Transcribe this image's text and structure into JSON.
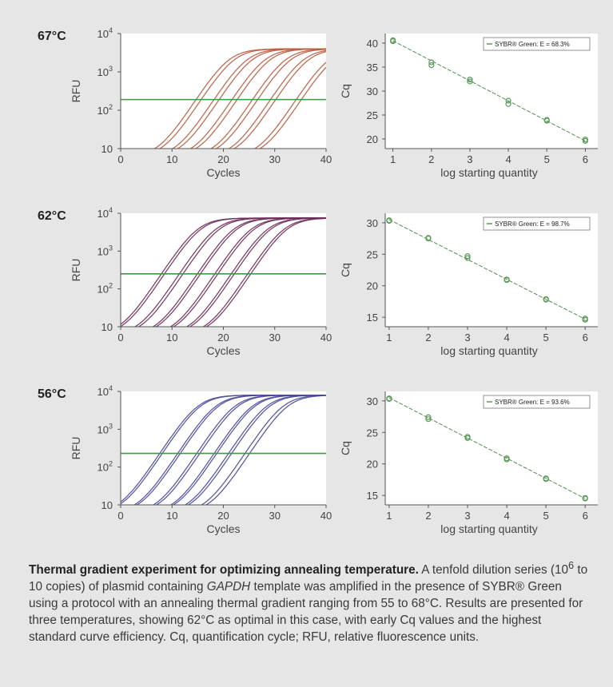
{
  "chart_data": [
    {
      "type": "line",
      "temperature": "67°C",
      "xlabel": "Cycles",
      "ylabel": "RFU",
      "xlim": [
        0,
        40
      ],
      "ylim": [
        10,
        10000
      ],
      "yscale": "log",
      "xticks": [
        "0",
        "10",
        "20",
        "30",
        "40"
      ],
      "yticks": [
        {
          "base": "10",
          "exp": ""
        },
        {
          "base": "10",
          "exp": "2"
        },
        {
          "base": "10",
          "exp": "3"
        },
        {
          "base": "10",
          "exp": "4"
        }
      ],
      "threshold": 190,
      "threshold_color": "#3f9a3f",
      "curve_color": "#b85c40",
      "curve_midpoints": [
        21,
        22,
        24.5,
        25.5,
        28,
        29,
        32,
        33,
        35.5,
        36.5,
        40.5,
        41.5
      ],
      "plateau": 4000
    },
    {
      "type": "scatter",
      "xlabel": "log starting quantity",
      "ylabel": "Cq",
      "xlim": [
        0.8,
        6.2
      ],
      "ylim": [
        18,
        42
      ],
      "xticks": [
        1,
        2,
        3,
        4,
        5,
        6
      ],
      "yticks": [
        20,
        25,
        30,
        35,
        40
      ],
      "legend": "SYBR® Green: E = 68.3%",
      "legend_position": "top-right",
      "point_color": "#5a9a5a",
      "x": [
        1,
        1,
        2,
        2,
        3,
        3,
        4,
        4,
        5,
        5,
        6,
        6
      ],
      "y": [
        40.6,
        40.4,
        36.0,
        35.4,
        32.4,
        32.0,
        28.0,
        27.3,
        24.0,
        23.8,
        19.9,
        19.6
      ],
      "fit": [
        [
          1,
          40.5
        ],
        [
          6,
          19.6
        ]
      ]
    },
    {
      "type": "line",
      "temperature": "62°C",
      "xlabel": "Cycles",
      "ylabel": "RFU",
      "xlim": [
        0,
        40
      ],
      "ylim": [
        10,
        10000
      ],
      "yscale": "log",
      "xticks": [
        "0",
        "10",
        "20",
        "30",
        "40"
      ],
      "yticks": [
        {
          "base": "10",
          "exp": ""
        },
        {
          "base": "10",
          "exp": "2"
        },
        {
          "base": "10",
          "exp": "3"
        },
        {
          "base": "10",
          "exp": "4"
        }
      ],
      "threshold": 250,
      "threshold_color": "#3f9a3f",
      "curve_color": "#6e2f5a",
      "curve_midpoints": [
        15,
        15.6,
        18.5,
        19.2,
        22,
        22.6,
        25.4,
        26,
        28.6,
        29.2,
        31.8,
        32.4
      ],
      "plateau": 7500
    },
    {
      "type": "scatter",
      "xlabel": "log starting quantity",
      "ylabel": "Cq",
      "xlim": [
        0.9,
        6.2
      ],
      "ylim": [
        13.5,
        31.5
      ],
      "xticks": [
        1,
        2,
        3,
        4,
        5,
        6
      ],
      "yticks": [
        15,
        20,
        25,
        30
      ],
      "legend": "SYBR® Green: E = 98.7%",
      "legend_position": "top-right",
      "point_color": "#5a9a5a",
      "x": [
        1,
        1,
        2,
        2,
        3,
        3,
        4,
        4,
        5,
        5,
        6,
        6
      ],
      "y": [
        30.4,
        30.3,
        27.6,
        27.5,
        24.7,
        24.4,
        21.0,
        20.9,
        17.9,
        17.8,
        14.8,
        14.6
      ],
      "fit": [
        [
          1,
          30.5
        ],
        [
          6,
          14.7
        ]
      ]
    },
    {
      "type": "line",
      "temperature": "56°C",
      "xlabel": "Cycles",
      "ylabel": "RFU",
      "xlim": [
        0,
        40
      ],
      "ylim": [
        10,
        10000
      ],
      "yscale": "log",
      "xticks": [
        "0",
        "10",
        "20",
        "30",
        "40"
      ],
      "yticks": [
        {
          "base": "10",
          "exp": ""
        },
        {
          "base": "10",
          "exp": "2"
        },
        {
          "base": "10",
          "exp": "3"
        },
        {
          "base": "10",
          "exp": "4"
        }
      ],
      "threshold": 230,
      "threshold_color": "#3f9a3f",
      "curve_color": "#4a4a98",
      "curve_midpoints": [
        15,
        15.5,
        18.5,
        19,
        22.2,
        22.8,
        25.6,
        26.1,
        28.4,
        29,
        31.6,
        32.5
      ],
      "plateau": 8000
    },
    {
      "type": "scatter",
      "xlabel": "log starting quantity",
      "ylabel": "Cq",
      "xlim": [
        0.9,
        6.2
      ],
      "ylim": [
        13.5,
        31.5
      ],
      "xticks": [
        1,
        2,
        3,
        4,
        5,
        6
      ],
      "yticks": [
        15,
        20,
        25,
        30
      ],
      "legend": "SYBR® Green: E = 93.6%",
      "legend_position": "top-right",
      "point_color": "#5a9a5a",
      "x": [
        1,
        1,
        2,
        2,
        3,
        3,
        4,
        4,
        5,
        5,
        6,
        6
      ],
      "y": [
        30.4,
        30.3,
        27.4,
        27.1,
        24.3,
        24.1,
        20.9,
        20.7,
        17.7,
        17.6,
        14.6,
        14.5
      ],
      "fit": [
        [
          1,
          30.5
        ],
        [
          6,
          14.5
        ]
      ]
    }
  ],
  "caption": {
    "title": "Thermal gradient experiment for optimizing annealing temperature.",
    "part1": " A tenfold dilution series (10",
    "sup": "6",
    "part2": " to 10 copies) of plasmid containing ",
    "gene": "GAPDH",
    "part3": " template was amplified in the presence of SYBR® Green using a protocol with an annealing thermal gradient ranging from 55 to 68°C. Results are presented for three temperatures, showing 62°C as optimal in this case, with early Cq values and the highest standard curve efficiency. Cq, quantification cycle; RFU, relative fluorescence units."
  }
}
